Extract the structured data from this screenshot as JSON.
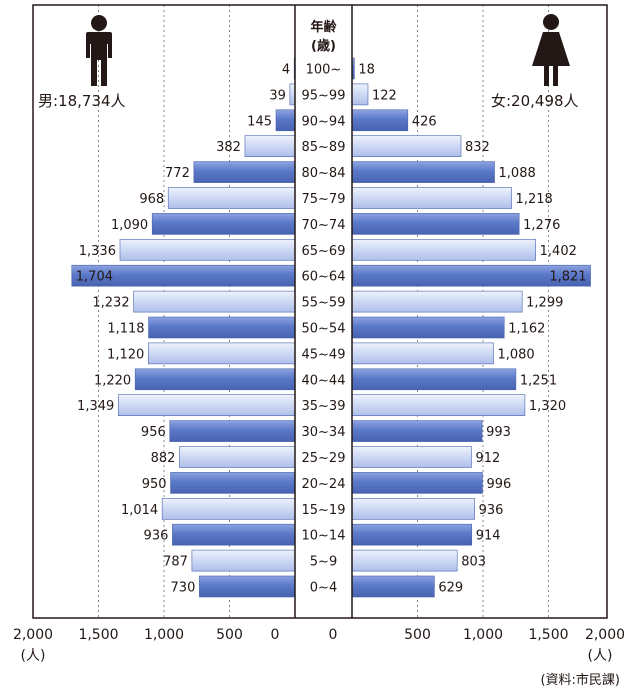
{
  "chart_data": {
    "type": "bar",
    "subtype": "population-pyramid",
    "categories": [
      "100~",
      "95~99",
      "90~94",
      "85~89",
      "80~84",
      "75~79",
      "70~74",
      "65~69",
      "60~64",
      "55~59",
      "50~54",
      "45~49",
      "40~44",
      "35~39",
      "30~34",
      "25~29",
      "20~24",
      "15~19",
      "10~14",
      "5~9",
      "0~4"
    ],
    "series": [
      {
        "name": "男",
        "side": "left",
        "values": [
          4,
          39,
          145,
          382,
          772,
          968,
          1090,
          1336,
          1704,
          1232,
          1118,
          1120,
          1220,
          1349,
          956,
          882,
          950,
          1014,
          936,
          787,
          730
        ],
        "labels": [
          "4",
          "39",
          "145",
          "382",
          "772",
          "968",
          "1,090",
          "1,336",
          "1,704",
          "1,232",
          "1,118",
          "1,120",
          "1,220",
          "1,349",
          "956",
          "882",
          "950",
          "1,014",
          "936",
          "787",
          "730"
        ]
      },
      {
        "name": "女",
        "side": "right",
        "values": [
          18,
          122,
          426,
          832,
          1088,
          1218,
          1276,
          1402,
          1821,
          1299,
          1162,
          1080,
          1251,
          1320,
          993,
          912,
          996,
          936,
          914,
          803,
          629
        ],
        "labels": [
          "18",
          "122",
          "426",
          "832",
          "1,088",
          "1,218",
          "1,276",
          "1,402",
          "1,821",
          "1,299",
          "1,162",
          "1,080",
          "1,251",
          "1,320",
          "993",
          "912",
          "996",
          "936",
          "914",
          "803",
          "629"
        ]
      }
    ],
    "center_header": [
      "年齢",
      "(歳)"
    ],
    "male_total": "男:18,734人",
    "female_total": "女:20,498人",
    "xlim": [
      0,
      2000
    ],
    "left_ticks": [
      "2,000",
      "1,500",
      "1,000",
      "500",
      "0"
    ],
    "right_ticks": [
      "0",
      "500",
      "1,000",
      "1,500",
      "2,000"
    ],
    "unit": "(人)",
    "source": "(資料:市民課)",
    "grid": true
  },
  "colors": {
    "dark_bar": "#5b79c9",
    "light_bar": "#cdd8f4",
    "text": "#231815",
    "frame": "#231815",
    "grid": "#888888"
  },
  "icons": [
    "male-person-icon",
    "female-person-icon"
  ]
}
